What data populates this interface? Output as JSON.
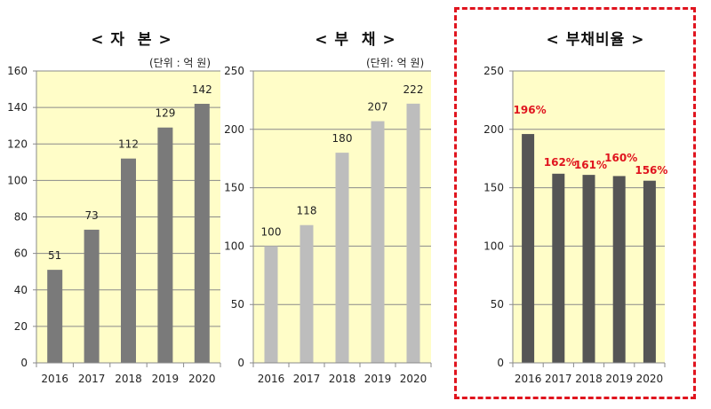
{
  "chart_data": [
    {
      "type": "bar",
      "title": "< 자  본 >",
      "unit": "(단위 : 억 원)",
      "categories": [
        "2016",
        "2017",
        "2018",
        "2019",
        "2020"
      ],
      "values": [
        51,
        73,
        112,
        129,
        142
      ],
      "data_labels": [
        "51",
        "73",
        "112",
        "129",
        "142"
      ],
      "ylim": [
        0,
        160
      ],
      "yticks": [
        0,
        20,
        40,
        60,
        80,
        100,
        120,
        140,
        160
      ],
      "grid": true,
      "bar_color": "#7a7a7a",
      "label_color": "#222222",
      "background": "#fffdc8"
    },
    {
      "type": "bar",
      "title": "< 부  채 >",
      "unit": "(단위: 억 원)",
      "categories": [
        "2016",
        "2017",
        "2018",
        "2019",
        "2020"
      ],
      "values": [
        100,
        118,
        180,
        207,
        222
      ],
      "data_labels": [
        "100",
        "118",
        "180",
        "207",
        "222"
      ],
      "ylim": [
        0,
        250
      ],
      "yticks": [
        0,
        50,
        100,
        150,
        200,
        250
      ],
      "grid": true,
      "bar_color": "#bdbdbd",
      "label_color": "#222222",
      "background": "#fffdc8"
    },
    {
      "type": "bar",
      "title": "< 부채비율 >",
      "categories": [
        "2016",
        "2017",
        "2018",
        "2019",
        "2020"
      ],
      "values": [
        196,
        162,
        161,
        160,
        156
      ],
      "data_labels": [
        "196%",
        "162%",
        "161%",
        "160%",
        "156%"
      ],
      "ylim": [
        0,
        250
      ],
      "yticks": [
        0,
        50,
        100,
        150,
        200,
        250
      ],
      "grid": true,
      "bar_color": "#555555",
      "label_color": "#e0141e",
      "background": "#fffdc8",
      "highlighted": true,
      "highlight_color": "#e0141e"
    }
  ]
}
